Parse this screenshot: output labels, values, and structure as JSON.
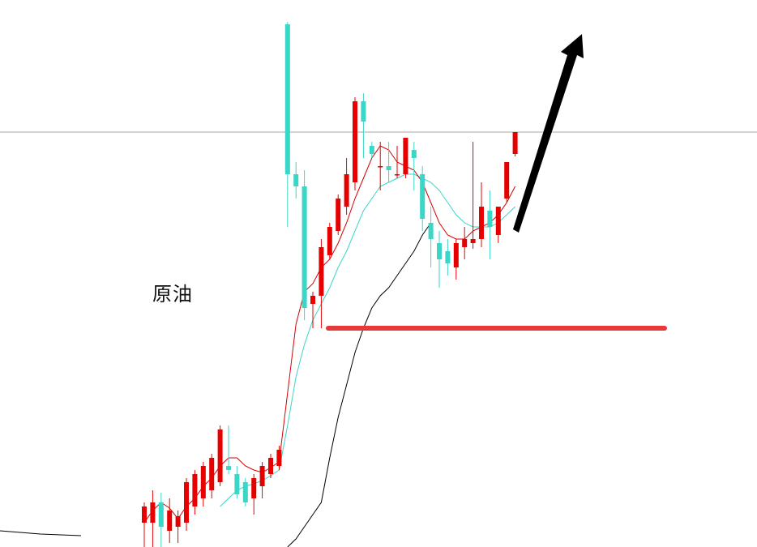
{
  "chart_data": {
    "type": "candlestick",
    "label": "原油",
    "colors": {
      "up": "#e60000",
      "down": "#3ad6c8",
      "ma_fast": "#d40000",
      "ma_mid": "#3ad6c8",
      "ma_slow": "#000000",
      "support": "#e8393a",
      "reference": "#8a8a8a",
      "arrow": "#000000"
    },
    "ylim": [
      0,
      675
    ],
    "reference_level": 512,
    "support_level": 270,
    "candles": [
      {
        "o": 30,
        "h": 55,
        "l": 0,
        "c": 50
      },
      {
        "o": 30,
        "h": 70,
        "l": 0,
        "c": 55
      },
      {
        "o": 55,
        "h": 67,
        "l": 0,
        "c": 25
      },
      {
        "o": 20,
        "h": 60,
        "l": 5,
        "c": 45
      },
      {
        "o": 25,
        "h": 45,
        "l": 5,
        "c": 38
      },
      {
        "o": 30,
        "h": 85,
        "l": 20,
        "c": 80
      },
      {
        "o": 50,
        "h": 95,
        "l": 40,
        "c": 90
      },
      {
        "o": 60,
        "h": 105,
        "l": 50,
        "c": 100
      },
      {
        "o": 70,
        "h": 115,
        "l": 60,
        "c": 110
      },
      {
        "o": 80,
        "h": 150,
        "l": 75,
        "c": 145
      },
      {
        "o": 100,
        "h": 150,
        "l": 90,
        "c": 95
      },
      {
        "o": 90,
        "h": 100,
        "l": 60,
        "c": 65
      },
      {
        "o": 80,
        "h": 85,
        "l": 50,
        "c": 55
      },
      {
        "o": 60,
        "h": 90,
        "l": 40,
        "c": 85
      },
      {
        "o": 75,
        "h": 105,
        "l": 60,
        "c": 100
      },
      {
        "o": 90,
        "h": 115,
        "l": 85,
        "c": 110
      },
      {
        "o": 100,
        "h": 125,
        "l": 95,
        "c": 120
      },
      {
        "o": 645,
        "h": 648,
        "l": 395,
        "c": 460
      },
      {
        "o": 460,
        "h": 475,
        "l": 430,
        "c": 445
      },
      {
        "o": 445,
        "h": 465,
        "l": 280,
        "c": 295
      },
      {
        "o": 300,
        "h": 315,
        "l": 270,
        "c": 310
      },
      {
        "o": 310,
        "h": 380,
        "l": 270,
        "c": 370
      },
      {
        "o": 360,
        "h": 400,
        "l": 355,
        "c": 395
      },
      {
        "o": 390,
        "h": 435,
        "l": 385,
        "c": 430
      },
      {
        "o": 420,
        "h": 480,
        "l": 410,
        "c": 460
      },
      {
        "o": 450,
        "h": 555,
        "l": 440,
        "c": 550
      },
      {
        "o": 550,
        "h": 560,
        "l": 480,
        "c": 525
      },
      {
        "o": 495,
        "h": 500,
        "l": 480,
        "c": 485
      },
      {
        "o": 470,
        "h": 500,
        "l": 440,
        "c": 470
      },
      {
        "o": 470,
        "h": 500,
        "l": 450,
        "c": 465
      },
      {
        "o": 460,
        "h": 495,
        "l": 455,
        "c": 460
      },
      {
        "o": 460,
        "h": 505,
        "l": 455,
        "c": 505
      },
      {
        "o": 490,
        "h": 500,
        "l": 440,
        "c": 480
      },
      {
        "o": 460,
        "h": 470,
        "l": 390,
        "c": 405
      },
      {
        "o": 400,
        "h": 420,
        "l": 345,
        "c": 380
      },
      {
        "o": 375,
        "h": 390,
        "l": 320,
        "c": 355
      },
      {
        "o": 365,
        "h": 380,
        "l": 335,
        "c": 350
      },
      {
        "o": 345,
        "h": 380,
        "l": 330,
        "c": 375
      },
      {
        "o": 370,
        "h": 395,
        "l": 355,
        "c": 380
      },
      {
        "o": 375,
        "h": 500,
        "l": 368,
        "c": 380
      },
      {
        "o": 380,
        "h": 450,
        "l": 370,
        "c": 420
      },
      {
        "o": 415,
        "h": 440,
        "l": 355,
        "c": 395
      },
      {
        "o": 385,
        "h": 420,
        "l": 375,
        "c": 420
      },
      {
        "o": 430,
        "h": 475,
        "l": 425,
        "c": 475
      },
      {
        "o": 485,
        "h": 512,
        "l": 482,
        "c": 512
      }
    ],
    "ma_fast": [
      30,
      45,
      55,
      48,
      35,
      50,
      60,
      75,
      85,
      100,
      110,
      110,
      100,
      95,
      92,
      98,
      105,
      190,
      275,
      315,
      325,
      345,
      355,
      375,
      400,
      430,
      455,
      480,
      495,
      490,
      475,
      470,
      465,
      450,
      425,
      400,
      385,
      380,
      380,
      390,
      395,
      400,
      410,
      425,
      445
    ],
    "ma_mid": [
      null,
      null,
      null,
      null,
      null,
      null,
      null,
      null,
      null,
      50,
      60,
      70,
      75,
      78,
      82,
      88,
      95,
      150,
      210,
      250,
      280,
      300,
      320,
      345,
      365,
      390,
      415,
      430,
      445,
      450,
      455,
      460,
      460,
      455,
      450,
      440,
      425,
      410,
      400,
      395,
      395,
      395,
      400,
      410,
      420
    ],
    "ma_slow_left": [
      20,
      18,
      16,
      15,
      14
    ],
    "ma_slow_right": [
      0,
      10,
      25,
      40,
      55,
      110,
      160,
      200,
      240,
      270,
      295,
      310,
      320,
      335,
      350,
      365,
      385,
      400
    ],
    "ma_slow_right_start": 16
  }
}
